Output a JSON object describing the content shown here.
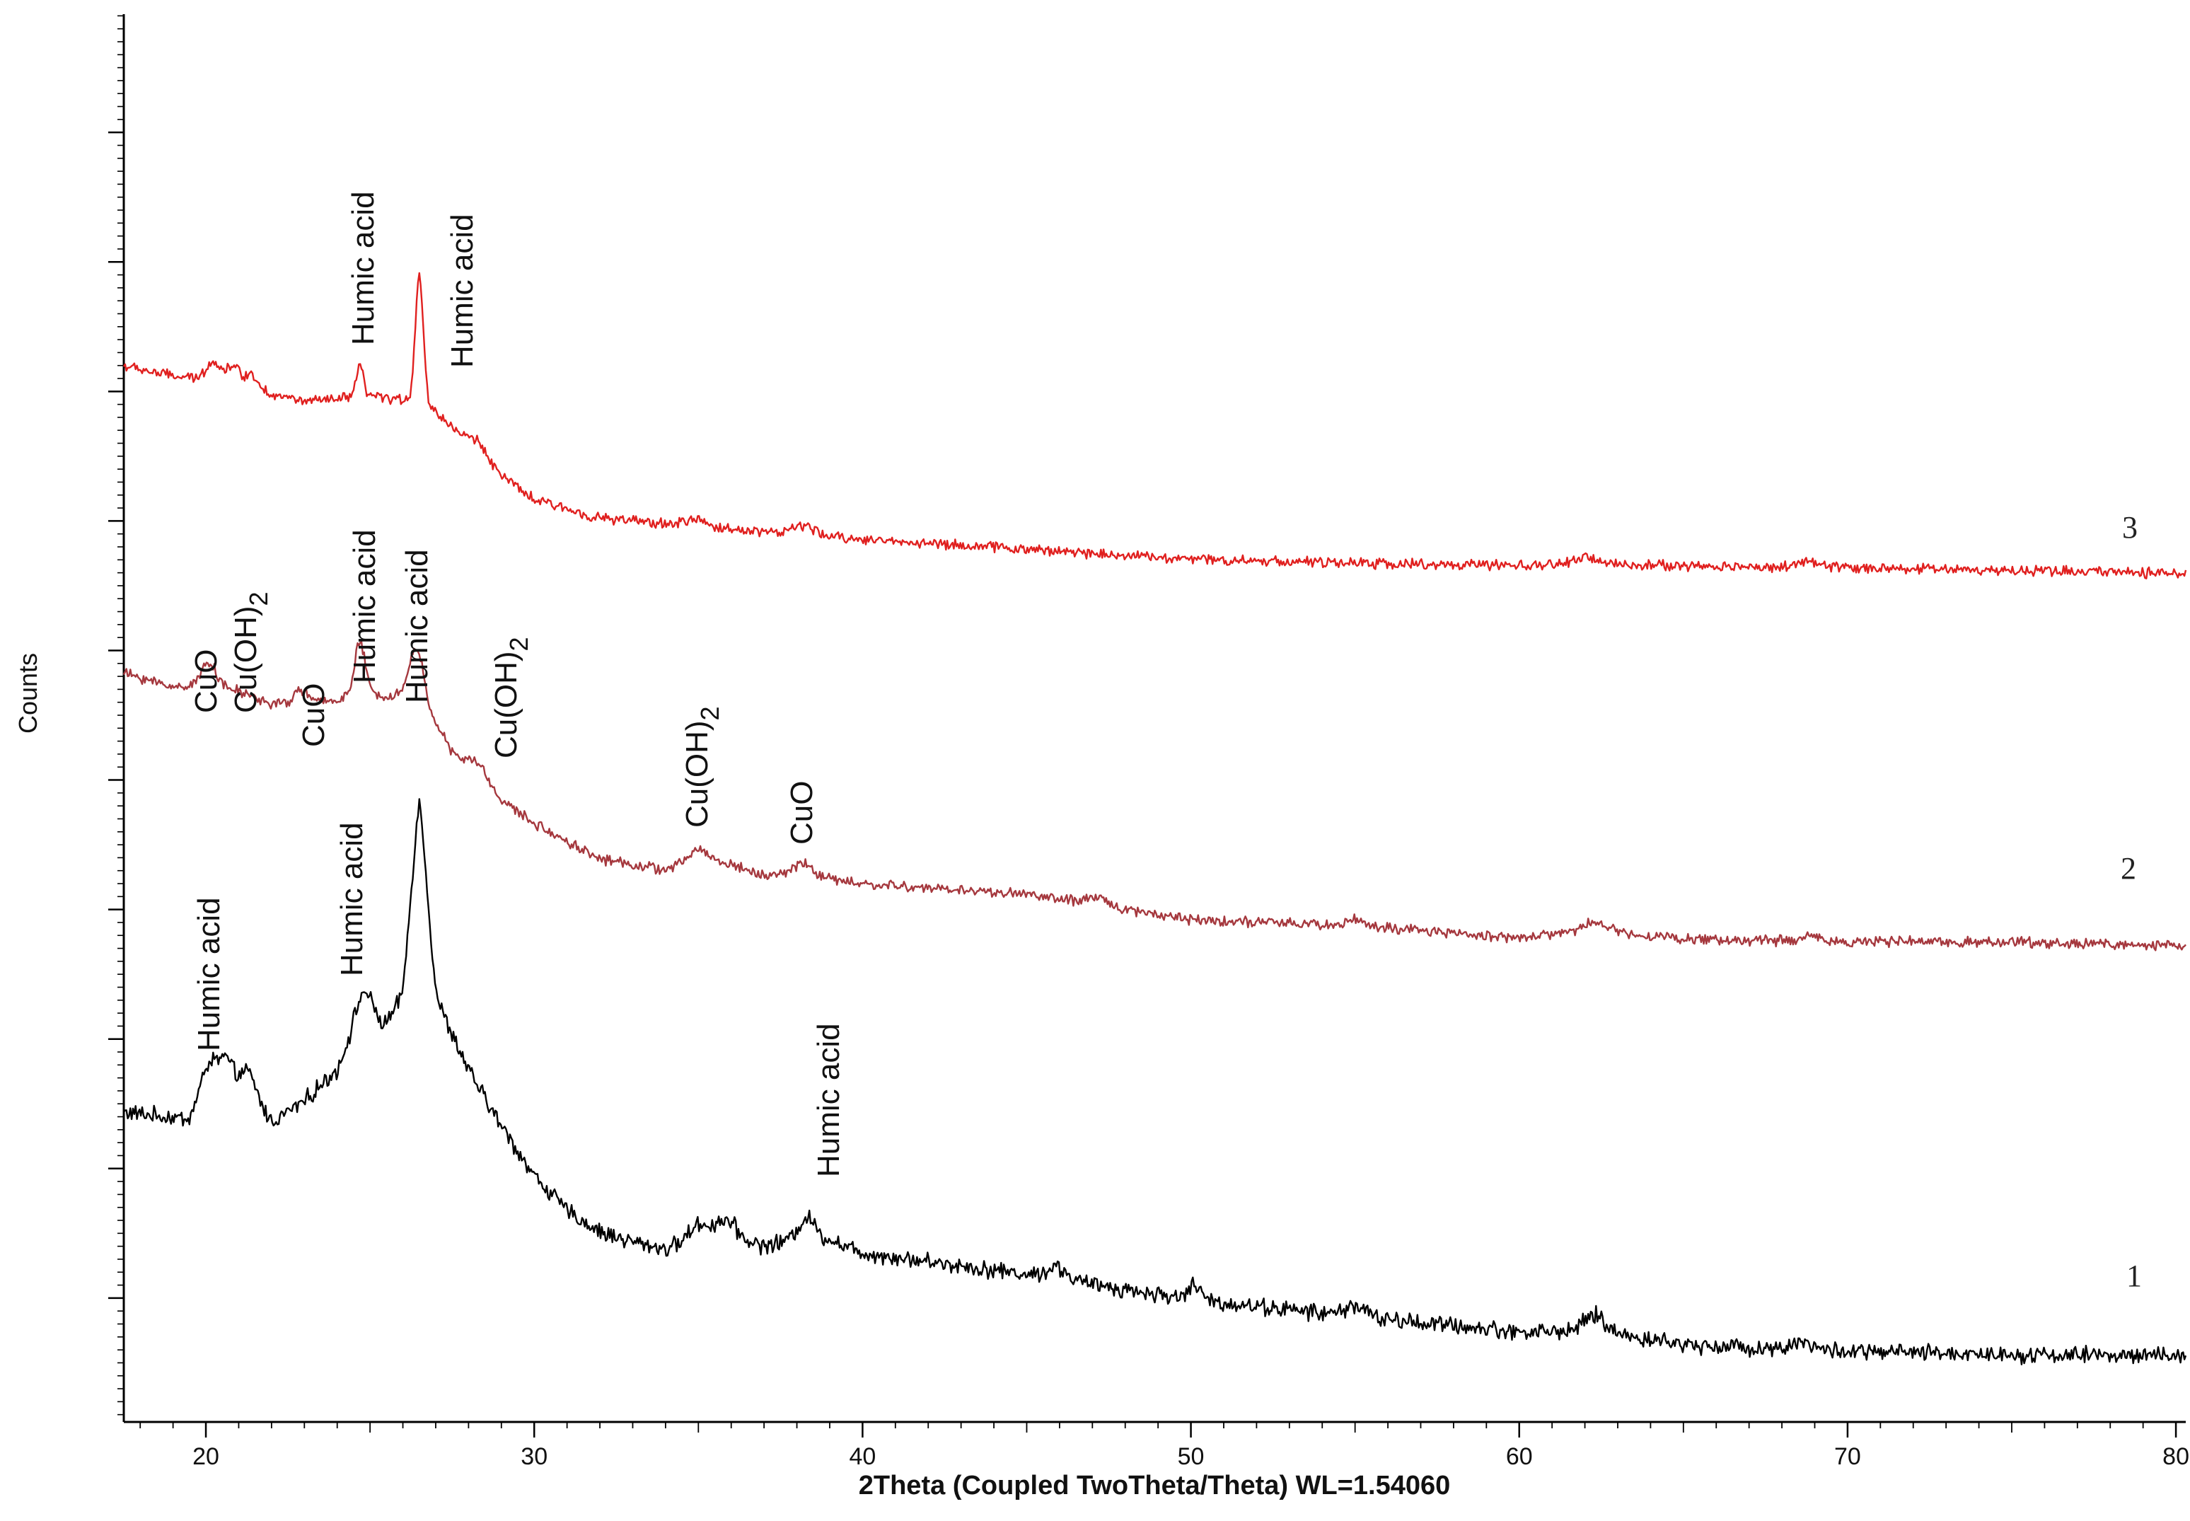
{
  "chart_data": {
    "type": "line",
    "title": "",
    "xlabel": "2Theta (Coupled TwoTheta/Theta) WL=1.54060",
    "ylabel": "Counts",
    "xlim": [
      17.5,
      80.3
    ],
    "x_ticks": [
      "20",
      "30",
      "40",
      "50",
      "60",
      "70",
      "80"
    ],
    "x_tick_values": [
      20,
      30,
      40,
      50,
      60,
      70,
      80
    ],
    "ylim": [
      0,
      100
    ],
    "y_tick_labels_shown": false,
    "grid": false,
    "legend": "none",
    "series": [
      {
        "name": "1",
        "color": "#000000",
        "noise": 0.9,
        "points": [
          [
            17.5,
            22.0
          ],
          [
            19.5,
            21.5
          ],
          [
            20.0,
            23.5
          ],
          [
            20.6,
            24.5
          ],
          [
            21.3,
            23.3
          ],
          [
            22.0,
            21.3
          ],
          [
            23.0,
            22.8
          ],
          [
            24.0,
            25.0
          ],
          [
            24.8,
            29.2
          ],
          [
            25.4,
            28.0
          ],
          [
            26.0,
            30.0
          ],
          [
            26.5,
            38.0
          ],
          [
            27.0,
            30.0
          ],
          [
            28.0,
            25.0
          ],
          [
            29.0,
            21.0
          ],
          [
            30.0,
            17.5
          ],
          [
            31.0,
            15.0
          ],
          [
            32.0,
            13.5
          ],
          [
            33.0,
            12.8
          ],
          [
            34.0,
            12.3
          ],
          [
            35.0,
            13.0
          ],
          [
            36.0,
            13.2
          ],
          [
            37.0,
            12.5
          ],
          [
            38.0,
            13.0
          ],
          [
            39.0,
            13.0
          ],
          [
            40.0,
            12.0
          ],
          [
            45.0,
            10.5
          ],
          [
            50.0,
            8.7
          ],
          [
            55.0,
            7.5
          ],
          [
            60.0,
            6.4
          ],
          [
            62.3,
            6.5
          ],
          [
            65.0,
            5.5
          ],
          [
            70.0,
            5.0
          ],
          [
            75.0,
            4.8
          ],
          [
            80.3,
            4.7
          ]
        ],
        "peaks": [
          [
            20.1,
            1.8,
            0.25
          ],
          [
            20.6,
            1.2,
            0.2
          ],
          [
            21.3,
            1.5,
            0.25
          ],
          [
            24.8,
            1.5,
            0.3
          ],
          [
            26.5,
            6.0,
            0.25
          ],
          [
            35.0,
            1.0,
            0.3
          ],
          [
            35.8,
            1.2,
            0.3
          ],
          [
            38.3,
            1.5,
            0.25
          ],
          [
            45.9,
            0.8,
            0.3
          ],
          [
            50.1,
            1.0,
            0.2
          ],
          [
            55.0,
            0.8,
            0.3
          ],
          [
            62.3,
            1.1,
            0.3
          ],
          [
            68.6,
            0.6,
            0.3
          ]
        ]
      },
      {
        "name": "2",
        "color": "#a5383e",
        "noise": 0.55,
        "points": [
          [
            17.5,
            53.2
          ],
          [
            19.0,
            52.2
          ],
          [
            20.0,
            52.5
          ],
          [
            21.0,
            51.9
          ],
          [
            22.0,
            51.0
          ],
          [
            23.0,
            51.0
          ],
          [
            24.0,
            51.3
          ],
          [
            24.6,
            52.0
          ],
          [
            25.5,
            51.5
          ],
          [
            26.5,
            52.0
          ],
          [
            27.5,
            47.5
          ],
          [
            28.5,
            45.0
          ],
          [
            30.0,
            42.5
          ],
          [
            32.0,
            40.0
          ],
          [
            34.0,
            39.2
          ],
          [
            35.0,
            40.0
          ],
          [
            36.0,
            39.6
          ],
          [
            37.0,
            38.8
          ],
          [
            38.0,
            39.0
          ],
          [
            39.0,
            38.6
          ],
          [
            40.0,
            38.2
          ],
          [
            45.0,
            37.5
          ],
          [
            50.0,
            35.7
          ],
          [
            55.0,
            35.2
          ],
          [
            60.0,
            34.4
          ],
          [
            62.3,
            35.0
          ],
          [
            65.0,
            34.3
          ],
          [
            70.0,
            34.1
          ],
          [
            75.0,
            34.1
          ],
          [
            80.3,
            33.8
          ]
        ],
        "peaks": [
          [
            20.1,
            1.6,
            0.2
          ],
          [
            22.9,
            1.0,
            0.2
          ],
          [
            24.7,
            3.4,
            0.15
          ],
          [
            26.4,
            3.0,
            0.2
          ],
          [
            28.3,
            1.3,
            0.3
          ],
          [
            35.0,
            0.7,
            0.3
          ],
          [
            38.2,
            0.8,
            0.25
          ],
          [
            47.2,
            0.5,
            0.3
          ],
          [
            55.0,
            0.5,
            0.3
          ],
          [
            62.3,
            0.6,
            0.3
          ],
          [
            68.9,
            0.4,
            0.3
          ]
        ]
      },
      {
        "name": "3",
        "color": "#e0201f",
        "noise": 0.55,
        "points": [
          [
            17.5,
            75.0
          ],
          [
            19.0,
            74.3
          ],
          [
            20.0,
            74.0
          ],
          [
            21.0,
            73.8
          ],
          [
            22.0,
            73.0
          ],
          [
            23.0,
            72.5
          ],
          [
            24.0,
            72.6
          ],
          [
            24.6,
            73.0
          ],
          [
            25.5,
            72.7
          ],
          [
            26.5,
            72.5
          ],
          [
            27.0,
            71.8
          ],
          [
            28.0,
            69.5
          ],
          [
            29.0,
            67.2
          ],
          [
            30.0,
            65.5
          ],
          [
            32.0,
            64.2
          ],
          [
            35.0,
            63.6
          ],
          [
            38.0,
            63.1
          ],
          [
            40.0,
            62.7
          ],
          [
            45.0,
            62.0
          ],
          [
            50.0,
            61.3
          ],
          [
            55.0,
            61.0
          ],
          [
            60.0,
            60.8
          ],
          [
            62.0,
            61.0
          ],
          [
            65.0,
            60.8
          ],
          [
            70.0,
            60.7
          ],
          [
            75.0,
            60.5
          ],
          [
            80.3,
            60.3
          ]
        ],
        "peaks": [
          [
            20.2,
            1.4,
            0.2
          ],
          [
            20.8,
            1.2,
            0.2
          ],
          [
            21.4,
            0.9,
            0.2
          ],
          [
            24.7,
            2.0,
            0.1
          ],
          [
            26.5,
            9.0,
            0.12
          ],
          [
            28.3,
            0.8,
            0.3
          ],
          [
            34.9,
            0.5,
            0.3
          ],
          [
            38.2,
            0.6,
            0.3
          ],
          [
            62.0,
            0.4,
            0.3
          ],
          [
            68.8,
            0.4,
            0.3
          ]
        ]
      }
    ],
    "annotations": [
      {
        "text": "Humic acid",
        "series": "3"
      },
      {
        "text": "Humic acid",
        "series": "3"
      },
      {
        "text": "CuO",
        "series": "2"
      },
      {
        "text": "Cu(OH)",
        "sub": "2",
        "series": "2"
      },
      {
        "text": "CuO",
        "series": "2"
      },
      {
        "text": "Humic acid",
        "series": "2"
      },
      {
        "text": "Humic acid",
        "series": "2"
      },
      {
        "text": "Cu(OH)",
        "sub": "2",
        "series": "2"
      },
      {
        "text": "Cu(OH)",
        "sub": "2",
        "series": "2"
      },
      {
        "text": "CuO",
        "series": "2"
      },
      {
        "text": "Humic acid",
        "series": "1"
      },
      {
        "text": "Humic acid",
        "series": "1"
      },
      {
        "text": "Humic acid",
        "series": "1"
      }
    ],
    "curve_labels": [
      "3",
      "2",
      "1"
    ]
  }
}
